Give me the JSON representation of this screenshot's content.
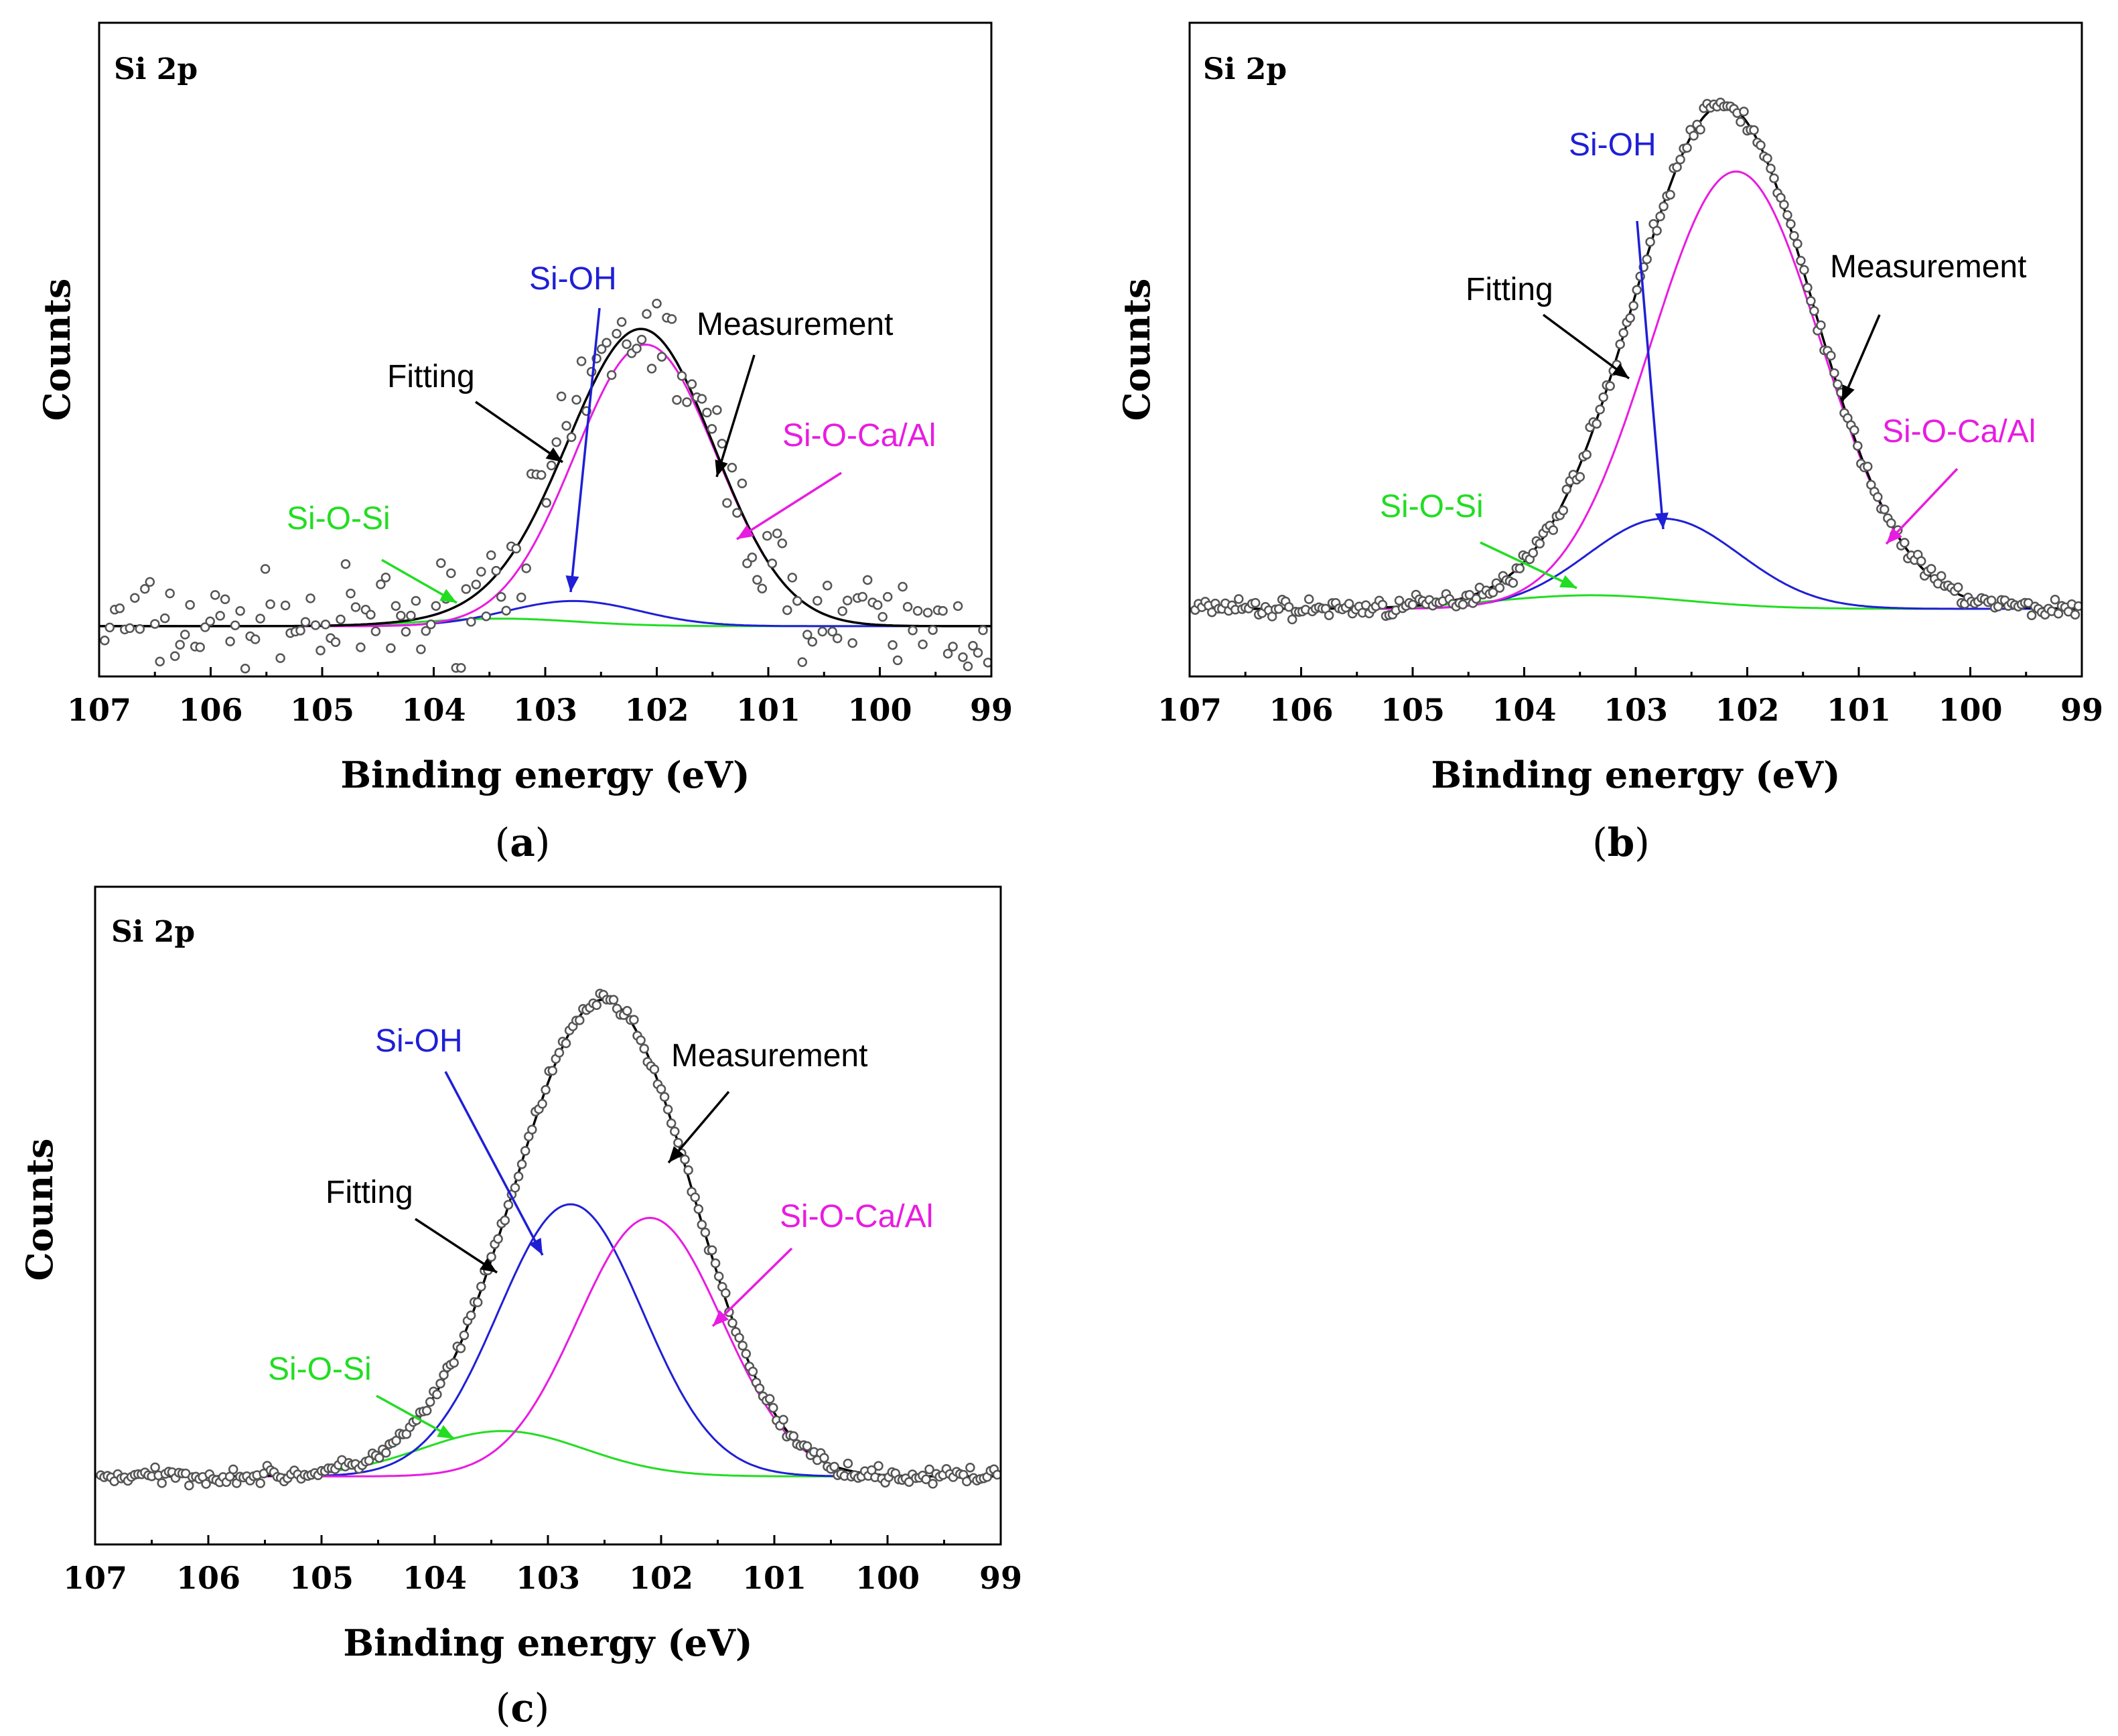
{
  "figure": {
    "captions": [
      "a",
      "b",
      "c"
    ]
  },
  "colors": {
    "fitting": "#000000",
    "measurement_points": "#555555",
    "si_oh": "#1f1fd6",
    "si_o_ca_al": "#e81ce0",
    "si_o_si": "#22dd22"
  },
  "chart_data": [
    {
      "type": "line",
      "panel": "a",
      "title": "Si 2p",
      "xlabel": "Binding energy (eV)",
      "ylabel": "Counts",
      "xlim": [
        107,
        99
      ],
      "ylim": [
        -10,
        120
      ],
      "xticks": [
        107,
        106,
        105,
        104,
        103,
        102,
        101,
        100,
        99
      ],
      "baseline": 0,
      "noise": 7,
      "series": [
        {
          "name": "Si-O-Ca/Al",
          "center": 102.1,
          "height": 56,
          "fwhm": 1.5
        },
        {
          "name": "Si-OH",
          "center": 102.75,
          "height": 5,
          "fwhm": 1.4
        },
        {
          "name": "Si-O-Si",
          "center": 103.4,
          "height": 1.5,
          "fwhm": 1.6
        }
      ],
      "annotations": {
        "si_oh": "Si-OH",
        "measurement": "Measurement",
        "fitting": "Fitting",
        "si_o_ca_al": "Si-O-Ca/Al",
        "si_o_si": "Si-O-Si"
      }
    },
    {
      "type": "line",
      "panel": "b",
      "title": "Si 2p",
      "xlabel": "Binding energy (eV)",
      "ylabel": "Counts",
      "xlim": [
        107,
        99
      ],
      "ylim": [
        -15,
        130
      ],
      "xticks": [
        107,
        106,
        105,
        104,
        103,
        102,
        101,
        100,
        99
      ],
      "baseline": 0,
      "noise": 1.5,
      "series": [
        {
          "name": "Si-O-Ca/Al",
          "center": 102.1,
          "height": 97,
          "fwhm": 1.8
        },
        {
          "name": "Si-OH",
          "center": 102.75,
          "height": 20,
          "fwhm": 1.6
        },
        {
          "name": "Si-O-Si",
          "center": 103.4,
          "height": 3,
          "fwhm": 2.0
        }
      ],
      "annotations": {
        "si_oh": "Si-OH",
        "measurement": "Measurement",
        "fitting": "Fitting",
        "si_o_ca_al": "Si-O-Ca/Al",
        "si_o_si": "Si-O-Si"
      }
    },
    {
      "type": "line",
      "panel": "c",
      "title": "Si 2p",
      "xlabel": "Binding energy (eV)",
      "ylabel": "Counts",
      "xlim": [
        107,
        99
      ],
      "ylim": [
        -15,
        130
      ],
      "xticks": [
        107,
        106,
        105,
        104,
        103,
        102,
        101,
        100,
        99
      ],
      "baseline": 0,
      "noise": 1.2,
      "series": [
        {
          "name": "Si-O-Ca/Al",
          "center": 102.1,
          "height": 57,
          "fwhm": 1.5
        },
        {
          "name": "Si-OH",
          "center": 102.8,
          "height": 60,
          "fwhm": 1.5
        },
        {
          "name": "Si-O-Si",
          "center": 103.4,
          "height": 10,
          "fwhm": 1.7
        }
      ],
      "annotations": {
        "si_oh": "Si-OH",
        "measurement": "Measurement",
        "fitting": "Fitting",
        "si_o_ca_al": "Si-O-Ca/Al",
        "si_o_si": "Si-O-Si"
      }
    }
  ]
}
